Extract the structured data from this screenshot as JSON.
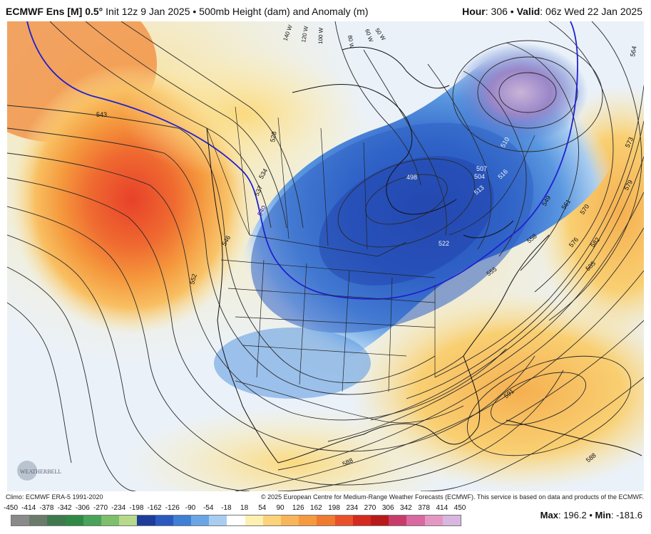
{
  "header": {
    "model": "ECMWF Ens [M] 0.5",
    "degree": "°",
    "init": " Init 12z 9 Jan 2025",
    "bullet": " • ",
    "product": "500mb Height (dam) and Anomaly (m)",
    "hour_label": "Hour",
    "hour_value": ": 306",
    "valid_label": "Valid",
    "valid_value": ": 06z Wed 22 Jan 2025"
  },
  "map": {
    "contour_labels": [
      "543",
      "528",
      "534",
      "537",
      "540",
      "546",
      "552",
      "498",
      "504",
      "507",
      "510",
      "513",
      "516",
      "522",
      "549",
      "555",
      "558",
      "561",
      "564",
      "570",
      "573",
      "576",
      "579",
      "582",
      "585",
      "588",
      "591"
    ],
    "longitude_labels": [
      "140 W",
      "120 W",
      "100 W",
      "80 W",
      "60 W",
      "50 W"
    ],
    "logo": "WEATHERBELL",
    "colors": {
      "ridge_core": "#e8512a",
      "ridge_mid": "#f59a3e",
      "ridge_light": "#fbd37a",
      "trough_core": "#2a4fb8",
      "trough_mid": "#3f7fd6",
      "trough_light": "#a9cdf0",
      "upper_low": "#b68fcb",
      "zero_line": "#2020d0"
    }
  },
  "footer": {
    "climo": "Climo: ECMWF ERA-5 1991-2020",
    "copyright": "© 2025 European Centre for Medium-Range Weather Forecasts (ECMWF). This service is based on data and products of the ECMWF."
  },
  "colorbar": {
    "labels": [
      "-450",
      "-414",
      "-378",
      "-342",
      "-306",
      "-270",
      "-234",
      "-198",
      "-162",
      "-126",
      "-90",
      "-54",
      "-18",
      "18",
      "54",
      "90",
      "126",
      "162",
      "198",
      "234",
      "270",
      "306",
      "342",
      "378",
      "414",
      "450"
    ],
    "colors": [
      "#8a8a8a",
      "#6b7b6b",
      "#3f7a4f",
      "#2f8a45",
      "#4aa35a",
      "#7dbf6a",
      "#b7d98a",
      "#1e3c9a",
      "#2a5ac0",
      "#3f7fd6",
      "#6aa6e6",
      "#a9cdf0",
      "#ffffff",
      "#fdf0b0",
      "#fbd37a",
      "#f8b55a",
      "#f59a3e",
      "#ef7a30",
      "#e8512a",
      "#d42a20",
      "#b81a1a",
      "#c83c6a",
      "#d86aa0",
      "#e597c4",
      "#d8b6e0"
    ]
  },
  "stats": {
    "max_label": "Max",
    "max_value": ": 196.2",
    "sep": " • ",
    "min_label": "Min",
    "min_value": ": -181.6"
  }
}
